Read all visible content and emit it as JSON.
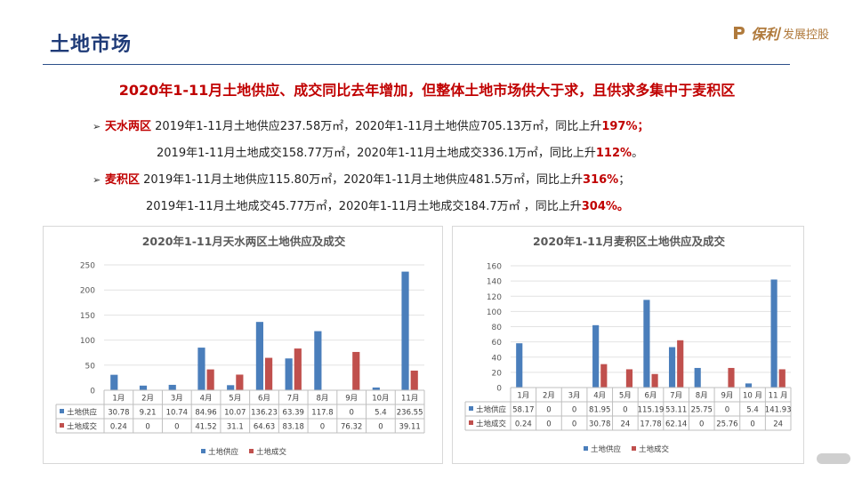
{
  "header": {
    "page_title": "土地市场",
    "logo_brand": "保利",
    "logo_text": "发展控股"
  },
  "headline": "2020年1-11月土地供应、成交同比去年增加，但整体土地市场供大于求，且供求多集中于麦积区",
  "bullets": {
    "tianshui": {
      "region": "天水两区",
      "line1_pre": " 2019年1-11月土地供应237.58万㎡，2020年1-11月土地供应705.13万㎡，同比上升",
      "line1_pct": "197%",
      "line1_end": "；",
      "line2_pre": "2019年1-11月土地成交158.77万㎡，2020年1-11月土地成交336.1万㎡，同比上升",
      "line2_pct": "112%",
      "line2_end": "。"
    },
    "maiji": {
      "region": "麦积区",
      "line1_pre": " 2019年1-11月土地供应115.80万㎡，2020年1-11月土地供应481.5万㎡，同比上升",
      "line1_pct": "316%",
      "line1_end": "；",
      "line2_pre": "2019年1-11月土地成交45.77万㎡，2020年1-11月土地成交184.7万㎡ ，同比上升",
      "line2_pct": "304%",
      "line2_end": "。"
    }
  },
  "chart_data": [
    {
      "type": "bar",
      "title": "2020年1-11月天水两区土地供应及成交",
      "categories": [
        "1月",
        "2月",
        "3月",
        "4月",
        "5月",
        "6月",
        "7月",
        "8月",
        "9月",
        "10月",
        "11月"
      ],
      "series": [
        {
          "name": "土地供应",
          "color": "#4a7ebb",
          "values": [
            30.78,
            9.21,
            10.74,
            84.96,
            10.07,
            136.23,
            63.39,
            117.8,
            0,
            5.4,
            236.55
          ],
          "labels": [
            "30.78",
            "9.21",
            "10.74",
            "84.96",
            "10.07",
            "136.23",
            "63.39",
            "117.8",
            "0",
            "5.4",
            "236.55"
          ]
        },
        {
          "name": "土地成交",
          "color": "#c0504d",
          "values": [
            0.24,
            0,
            0,
            41.52,
            31.1,
            64.63,
            83.18,
            0,
            76.32,
            0,
            39.11
          ],
          "labels": [
            "0.24",
            "0",
            "0",
            "41.52",
            "31.1",
            "64.63",
            "83.18",
            "0",
            "76.32",
            "0",
            "39.11"
          ]
        }
      ],
      "ylim": [
        0,
        250
      ],
      "yticks": [
        0,
        50,
        100,
        150,
        200,
        250
      ],
      "legend": "bottom",
      "data_table": true
    },
    {
      "type": "bar",
      "title": "2020年1-11月麦积区土地供应及成交",
      "categories": [
        "1月",
        "2月",
        "3月",
        "4月",
        "5月",
        "6月",
        "7月",
        "8月",
        "9月",
        "10 月",
        "11 月"
      ],
      "series": [
        {
          "name": "土地供应",
          "color": "#4a7ebb",
          "values": [
            58.17,
            0,
            0,
            81.95,
            0,
            115.19,
            53.11,
            25.75,
            0,
            5.4,
            141.93
          ],
          "labels": [
            "58.17",
            "0",
            "0",
            "81.95",
            "0",
            "115.19",
            "53.11",
            "25.75",
            "0",
            "5.4",
            "141.93"
          ]
        },
        {
          "name": "土地成交",
          "color": "#c0504d",
          "values": [
            0.24,
            0,
            0,
            30.78,
            24,
            17.78,
            62.14,
            0,
            25.76,
            0,
            24
          ],
          "labels": [
            "0.24",
            "0",
            "0",
            "30.78",
            "24",
            "17.78",
            "62.14",
            "0",
            "25.76",
            "0",
            "24"
          ]
        }
      ],
      "ylim": [
        0,
        160
      ],
      "yticks": [
        0,
        20,
        40,
        60,
        80,
        100,
        120,
        140,
        160
      ],
      "legend": "bottom",
      "data_table": true
    }
  ]
}
